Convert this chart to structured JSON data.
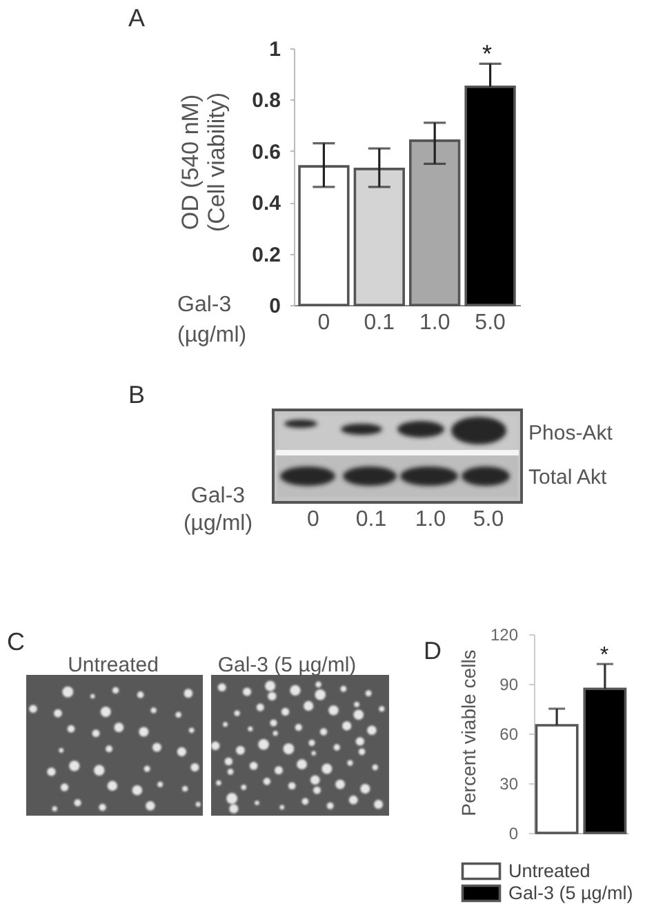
{
  "chart_data": [
    {
      "type": "bar",
      "title": "A",
      "ylabel": "OD (540 nM)\n(Cell viability)",
      "xlabel": "Gal-3\n(µg/ml)",
      "categories": [
        "0",
        "0.1",
        "1.0",
        "5.0"
      ],
      "values": [
        0.54,
        0.53,
        0.64,
        0.85
      ],
      "colors": [
        "#ffffff",
        "#d4d4d4",
        "#a8a8a8",
        "#000000"
      ],
      "errors": [
        [
          0.46,
          0.63
        ],
        [
          0.46,
          0.61
        ],
        [
          0.55,
          0.71
        ],
        [
          0.85,
          0.94
        ]
      ],
      "ylim": [
        0,
        1
      ],
      "yticks": [
        0,
        0.2,
        0.4,
        0.6,
        0.8,
        1
      ],
      "annotations": [
        "*"
      ]
    },
    {
      "type": "other",
      "title": "B",
      "xlabel": "Gal-3\n(µg/ml)",
      "categories": [
        "0",
        "0.1",
        "1.0",
        "5.0"
      ],
      "annotations": [
        "Phos-Akt",
        "Total Akt"
      ]
    },
    {
      "type": "other",
      "title": "C",
      "categories": [
        "Untreated",
        "Gal-3 (5 µg/ml)"
      ]
    },
    {
      "type": "bar",
      "title": "D",
      "ylabel": "Percent viable cells",
      "categories": [
        null
      ],
      "series": [
        {
          "name": "Untreated",
          "color": "#ffffff",
          "values": [
            65
          ],
          "errors": [
            [
              65,
              75
            ]
          ]
        },
        {
          "name": "Gal-3 (5 µg/ml)",
          "color": "#000000",
          "values": [
            87
          ],
          "errors": [
            [
              87,
              102
            ]
          ]
        }
      ],
      "ylim": [
        0,
        120
      ],
      "yticks": [
        0,
        30,
        60,
        90,
        120
      ],
      "legend": "bottom",
      "annotations": [
        "*"
      ]
    }
  ]
}
